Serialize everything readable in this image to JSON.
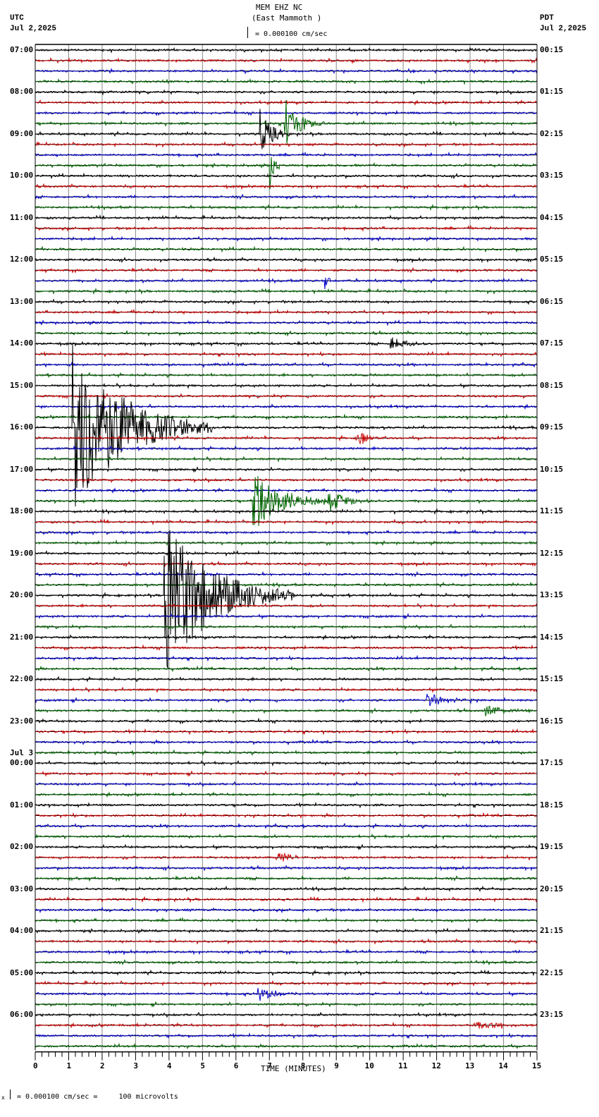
{
  "header": {
    "station": "MEM EHZ NC",
    "location": "(East Mammoth )",
    "scale_text": "= 0.000100 cm/sec",
    "left_tz": "UTC",
    "left_date": "Jul 2,2025",
    "right_tz": "PDT",
    "right_date": "Jul 2,2025"
  },
  "footer": {
    "scale_text": "= 0.000100 cm/sec =     100 microvolts",
    "prefix": "x"
  },
  "colors": {
    "trace_cycle": [
      "#000000",
      "#cc0000",
      "#0000cc",
      "#006600"
    ],
    "grid": "#888888",
    "frame": "#000000"
  },
  "chart_data": {
    "type": "line",
    "title": "MEM EHZ NC (East Mammoth )",
    "subtitle": "= 0.000100 cm/sec",
    "xlabel": "TIME (MINUTES)",
    "ylabel": "",
    "xlim": [
      0,
      15
    ],
    "x_ticks": [
      "0",
      "1",
      "2",
      "3",
      "4",
      "5",
      "6",
      "7",
      "8",
      "9",
      "10",
      "11",
      "12",
      "13",
      "14",
      "15"
    ],
    "grid": true,
    "traces_per_hour": 4,
    "trace_minutes": 15,
    "left_labels_utc": [
      "07:00",
      "08:00",
      "09:00",
      "10:00",
      "11:00",
      "12:00",
      "13:00",
      "14:00",
      "15:00",
      "16:00",
      "17:00",
      "18:00",
      "19:00",
      "20:00",
      "21:00",
      "22:00",
      "23:00",
      "00:00",
      "01:00",
      "02:00",
      "03:00",
      "04:00",
      "05:00",
      "06:00"
    ],
    "left_date_change": {
      "label": "Jul 3",
      "before_hour": "00:00"
    },
    "right_labels_pdt": [
      "00:15",
      "01:15",
      "02:15",
      "03:15",
      "04:15",
      "05:15",
      "06:15",
      "07:15",
      "08:15",
      "09:15",
      "10:15",
      "11:15",
      "12:15",
      "13:15",
      "14:15",
      "15:15",
      "16:15",
      "17:15",
      "18:15",
      "19:15",
      "20:15",
      "21:15",
      "22:15",
      "23:15"
    ],
    "events": [
      {
        "trace": 8,
        "minute": 6.7,
        "amp": 40,
        "decay": 0.3,
        "color_idx": 3,
        "note": "spikes 09:00 green"
      },
      {
        "trace": 7,
        "minute": 7.45,
        "amp": 40,
        "decay": 0.4,
        "color_idx": 3
      },
      {
        "trace": 11,
        "minute": 7.0,
        "amp": 45,
        "decay": 0.1,
        "color_idx": 3
      },
      {
        "trace": 22,
        "minute": 8.65,
        "amp": 14,
        "decay": 0.1,
        "color_idx": 2
      },
      {
        "trace": 28,
        "minute": 10.6,
        "amp": 10,
        "decay": 0.5,
        "color_idx": 0
      },
      {
        "trace": 36,
        "minute": 1.1,
        "amp": 130,
        "decay": 1.4,
        "color_idx": 0,
        "note": "large quake ~16:00 UTC"
      },
      {
        "trace": 37,
        "minute": 9.6,
        "amp": 20,
        "decay": 0.2,
        "color_idx": 1
      },
      {
        "trace": 43,
        "minute": 6.5,
        "amp": 45,
        "decay": 0.8,
        "color_idx": 3
      },
      {
        "trace": 43,
        "minute": 8.75,
        "amp": 18,
        "decay": 0.5,
        "color_idx": 3
      },
      {
        "trace": 52,
        "minute": 3.85,
        "amp": 120,
        "decay": 1.3,
        "color_idx": 0,
        "note": "large quake ~20:00 UTC"
      },
      {
        "trace": 62,
        "minute": 11.7,
        "amp": 10,
        "decay": 0.6,
        "color_idx": 2
      },
      {
        "trace": 63,
        "minute": 13.4,
        "amp": 10,
        "decay": 0.5,
        "color_idx": 3
      },
      {
        "trace": 77,
        "minute": 7.25,
        "amp": 10,
        "decay": 0.4,
        "color_idx": 1
      },
      {
        "trace": 90,
        "minute": 6.65,
        "amp": 12,
        "decay": 0.5,
        "color_idx": 3
      },
      {
        "trace": 93,
        "minute": 13.1,
        "amp": 8,
        "decay": 0.6,
        "color_idx": 1
      }
    ]
  }
}
